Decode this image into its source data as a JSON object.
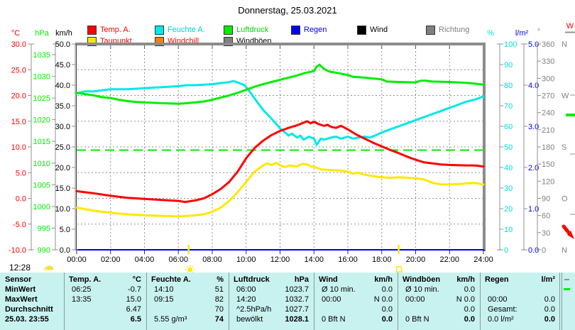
{
  "title": "Donnerstag, 25.03.2021",
  "footer": {
    "time": "12:28",
    "weather_icon": "cloud"
  },
  "colors": {
    "red": "#ff0000",
    "cyan": "#00dfdf",
    "green": "#00ee00",
    "blue": "#0000ff",
    "black": "#000000",
    "gray": "#808080",
    "yellow": "#ffe800",
    "orange": "#ff8000",
    "table_bg": "#c8f2f0",
    "grid": "#909090",
    "border": "#8c8c8c"
  },
  "legend": {
    "rows": [
      [
        {
          "label": "Temp. A.",
          "color": "#ff0000",
          "text_color": "#ff0000"
        },
        {
          "label": "Feuchte A.",
          "color": "#00e8e8",
          "text_color": "#00cfcf"
        },
        {
          "label": "Luftdruck",
          "color": "#00ee00",
          "text_color": "#00d400"
        },
        {
          "label": "Regen",
          "color": "#0000ff",
          "text_color": "#0000ff"
        },
        {
          "label": "Wind",
          "color": "#000000",
          "text_color": "#000000"
        },
        {
          "label": "Richtung",
          "color": "#808080",
          "text_color": "#808080"
        }
      ],
      [
        {
          "label": "Taupunkt",
          "color": "#ffe800",
          "text_color": "#ff0000"
        },
        {
          "label": "Windchill",
          "color": "#ff8000",
          "text_color": "#ff0000"
        },
        {
          "label": "Windböen",
          "color": "#808080",
          "text_color": "#000000"
        }
      ]
    ]
  },
  "axes": {
    "temp": {
      "unit": "°C",
      "ticks": [
        "30.0",
        "25.0",
        "20.0",
        "15.0",
        "10.0",
        "5.0",
        "0.0",
        "-5.0",
        "-10.0"
      ]
    },
    "pressure": {
      "unit": "hPa",
      "ticks": [
        "1035",
        "1030",
        "1025",
        "1020",
        "1015",
        "1010",
        "1005",
        "1000",
        "995",
        "990"
      ]
    },
    "wind": {
      "unit": "km/h",
      "ticks": [
        "50.0",
        "45.0",
        "40.0",
        "35.0",
        "30.0",
        "25.0",
        "20.0",
        "15.0",
        "10.0",
        "5.0",
        "0.0"
      ]
    },
    "humidity": {
      "unit": "%",
      "ticks": [
        "100",
        "90",
        "80",
        "70",
        "60",
        "50",
        "40",
        "30",
        "20",
        "10",
        "0"
      ]
    },
    "rain": {
      "unit": "l/m²",
      "ticks": [
        "5.0",
        "4.0",
        "3.0",
        "2.0",
        "1.0",
        "0.0"
      ]
    },
    "direction": {
      "unit": "°",
      "ticks": [
        {
          "v": "360",
          "l": "N"
        },
        {
          "v": "330",
          "l": ""
        },
        {
          "v": "300",
          "l": ""
        },
        {
          "v": "270",
          "l": "W"
        },
        {
          "v": "240",
          "l": ""
        },
        {
          "v": "210",
          "l": ""
        },
        {
          "v": "180",
          "l": "S"
        },
        {
          "v": "150",
          "l": ""
        },
        {
          "v": "120",
          "l": ""
        },
        {
          "v": "90",
          "l": "O"
        },
        {
          "v": "60",
          "l": ""
        },
        {
          "v": "30",
          "l": ""
        },
        {
          "v": "0",
          "l": "N"
        }
      ]
    },
    "radiation": {
      "unit": "W"
    }
  },
  "x_axis": {
    "labels": [
      "00:00",
      "02:00",
      "04:00",
      "06:00",
      "08:00",
      "10:00",
      "12:00",
      "14:00",
      "16:00",
      "18:00",
      "20:00",
      "22:00",
      "24:00"
    ]
  },
  "chart_data": {
    "type": "line",
    "x_unit": "hours",
    "x_range": [
      0,
      24
    ],
    "axis_ranges": {
      "temp": [
        -10,
        30
      ],
      "pressure": [
        990,
        1035
      ],
      "wind": [
        0,
        50
      ],
      "humidity": [
        0,
        100
      ],
      "rain": [
        0,
        5
      ],
      "direction": [
        0,
        360
      ]
    },
    "reference_line": {
      "axis": "pressure",
      "value": 1013,
      "color": "#00ee00",
      "style": "dashed"
    },
    "markers": {
      "sunrise_hour": 6.6,
      "sunset_hour": 19.0
    },
    "series": [
      {
        "name": "Regen",
        "axis": "rain",
        "color": "#0000ff",
        "width": 2,
        "points": [
          [
            0,
            0
          ],
          [
            24,
            0
          ]
        ]
      },
      {
        "name": "Feuchte A.",
        "axis": "humidity",
        "color": "#00e8e8",
        "width": 3,
        "points": [
          [
            0,
            76
          ],
          [
            0.5,
            77
          ],
          [
            1,
            77
          ],
          [
            2,
            78
          ],
          [
            3,
            78
          ],
          [
            4,
            78.5
          ],
          [
            5,
            79
          ],
          [
            6,
            79.5
          ],
          [
            6.5,
            80
          ],
          [
            7,
            80
          ],
          [
            8,
            80.5
          ],
          [
            8.5,
            81
          ],
          [
            9,
            81.5
          ],
          [
            9.25,
            82
          ],
          [
            9.6,
            81
          ],
          [
            9.9,
            80
          ],
          [
            10.2,
            77
          ],
          [
            10.5,
            73.5
          ],
          [
            11,
            68
          ],
          [
            11.4,
            64.5
          ],
          [
            11.8,
            61
          ],
          [
            12,
            59
          ],
          [
            12.3,
            57
          ],
          [
            12.5,
            55.5
          ],
          [
            12.7,
            56.5
          ],
          [
            13,
            54.5
          ],
          [
            13.2,
            55.5
          ],
          [
            13.4,
            53.5
          ],
          [
            13.7,
            55
          ],
          [
            14,
            54
          ],
          [
            14.17,
            51
          ],
          [
            14.4,
            54
          ],
          [
            14.6,
            53.5
          ],
          [
            14.8,
            54
          ],
          [
            15,
            54.5
          ],
          [
            15.3,
            55
          ],
          [
            15.6,
            54
          ],
          [
            16,
            55
          ],
          [
            16.3,
            54
          ],
          [
            16.6,
            54.5
          ],
          [
            17,
            55
          ],
          [
            17.3,
            54.5
          ],
          [
            17.6,
            55.5
          ],
          [
            18,
            57
          ],
          [
            18.5,
            58.5
          ],
          [
            19,
            60
          ],
          [
            19.5,
            61.5
          ],
          [
            20,
            63
          ],
          [
            20.5,
            64.5
          ],
          [
            21,
            66
          ],
          [
            21.5,
            67.5
          ],
          [
            22,
            69
          ],
          [
            22.5,
            70.5
          ],
          [
            23,
            72
          ],
          [
            23.5,
            73
          ],
          [
            24,
            74.5
          ]
        ]
      },
      {
        "name": "Luftdruck",
        "axis": "pressure",
        "color": "#00ee00",
        "width": 3,
        "points": [
          [
            0,
            1026.2
          ],
          [
            0.5,
            1025.9
          ],
          [
            1,
            1025.6
          ],
          [
            1.5,
            1025.2
          ],
          [
            2,
            1025.0
          ],
          [
            2.5,
            1024.6
          ],
          [
            3,
            1024.3
          ],
          [
            3.5,
            1024.1
          ],
          [
            4,
            1024.0
          ],
          [
            5,
            1023.8
          ],
          [
            6,
            1023.7
          ],
          [
            6.5,
            1023.8
          ],
          [
            7,
            1024.0
          ],
          [
            7.5,
            1024.2
          ],
          [
            8,
            1024.6
          ],
          [
            8.5,
            1025.1
          ],
          [
            9,
            1025.6
          ],
          [
            9.5,
            1026.2
          ],
          [
            10,
            1026.9
          ],
          [
            10.5,
            1027.6
          ],
          [
            11,
            1028.2
          ],
          [
            11.5,
            1028.7
          ],
          [
            12,
            1029.2
          ],
          [
            12.5,
            1029.7
          ],
          [
            13,
            1030.2
          ],
          [
            13.5,
            1030.8
          ],
          [
            14,
            1031.2
          ],
          [
            14.15,
            1032.2
          ],
          [
            14.33,
            1032.7
          ],
          [
            14.6,
            1031.7
          ],
          [
            14.9,
            1031.1
          ],
          [
            15.5,
            1030.7
          ],
          [
            16,
            1030.3
          ],
          [
            16.3,
            1029.9
          ],
          [
            17,
            1029.7
          ],
          [
            17.5,
            1029.5
          ],
          [
            18,
            1029.3
          ],
          [
            18.3,
            1028.8
          ],
          [
            19,
            1028.7
          ],
          [
            20,
            1028.6
          ],
          [
            20.3,
            1029.0
          ],
          [
            20.6,
            1029.0
          ],
          [
            21,
            1028.8
          ],
          [
            22,
            1028.7
          ],
          [
            23,
            1028.5
          ],
          [
            23.5,
            1028.3
          ],
          [
            24,
            1028.1
          ]
        ]
      },
      {
        "name": "Taupunkt",
        "axis": "temp",
        "color": "#ffe800",
        "width": 3,
        "points": [
          [
            0,
            -1.8
          ],
          [
            1,
            -2.4
          ],
          [
            2,
            -2.8
          ],
          [
            3,
            -3.1
          ],
          [
            4,
            -3.3
          ],
          [
            5,
            -3.4
          ],
          [
            6,
            -3.5
          ],
          [
            7,
            -3.3
          ],
          [
            7.5,
            -3.1
          ],
          [
            8,
            -2.6
          ],
          [
            8.5,
            -1.8
          ],
          [
            9,
            -0.5
          ],
          [
            9.5,
            1.2
          ],
          [
            10,
            3.2
          ],
          [
            10.5,
            5.2
          ],
          [
            11,
            6.4
          ],
          [
            11.2,
            6.8
          ],
          [
            11.5,
            6.5
          ],
          [
            11.8,
            6.9
          ],
          [
            12,
            6.4
          ],
          [
            12.3,
            6.1
          ],
          [
            12.6,
            6.4
          ],
          [
            13,
            6.2
          ],
          [
            13.3,
            6.7
          ],
          [
            13.6,
            6.6
          ],
          [
            13.8,
            6.2
          ],
          [
            14,
            6.2
          ],
          [
            14.2,
            5.9
          ],
          [
            14.5,
            5.6
          ],
          [
            15,
            5.5
          ],
          [
            15.5,
            5.4
          ],
          [
            16,
            5.2
          ],
          [
            16.3,
            4.8
          ],
          [
            16.6,
            5.0
          ],
          [
            17,
            4.6
          ],
          [
            17.5,
            4.3
          ],
          [
            18,
            4.1
          ],
          [
            18.5,
            4.0
          ],
          [
            19,
            4.1
          ],
          [
            19.5,
            4.0
          ],
          [
            20,
            3.9
          ],
          [
            20.5,
            3.7
          ],
          [
            21,
            3.0
          ],
          [
            21.5,
            2.7
          ],
          [
            22,
            2.7
          ],
          [
            22.5,
            2.8
          ],
          [
            23,
            2.9
          ],
          [
            23.5,
            3.0
          ],
          [
            24,
            2.7
          ]
        ]
      },
      {
        "name": "Temp. A.",
        "axis": "temp",
        "color": "#ff0000",
        "width": 3,
        "points": [
          [
            0,
            1.4
          ],
          [
            1,
            1.0
          ],
          [
            2,
            0.5
          ],
          [
            3,
            0.1
          ],
          [
            4,
            -0.1
          ],
          [
            5,
            -0.3
          ],
          [
            6,
            -0.5
          ],
          [
            6.4,
            -0.7
          ],
          [
            7,
            -0.4
          ],
          [
            7.5,
            0
          ],
          [
            8,
            0.8
          ],
          [
            8.5,
            1.8
          ],
          [
            9,
            3.2
          ],
          [
            9.5,
            5.2
          ],
          [
            10,
            7.8
          ],
          [
            10.5,
            9.8
          ],
          [
            11,
            11.2
          ],
          [
            11.5,
            12.3
          ],
          [
            12,
            13.1
          ],
          [
            12.5,
            13.7
          ],
          [
            13,
            14.2
          ],
          [
            13.6,
            15.0
          ],
          [
            13.8,
            14.6
          ],
          [
            14,
            14.9
          ],
          [
            14.3,
            14.4
          ],
          [
            14.6,
            14.1
          ],
          [
            14.8,
            14.3
          ],
          [
            15,
            13.9
          ],
          [
            15.3,
            13.7
          ],
          [
            15.6,
            14.1
          ],
          [
            16,
            13.4
          ],
          [
            16.5,
            12.4
          ],
          [
            17,
            11.6
          ],
          [
            17.5,
            10.8
          ],
          [
            18,
            10.1
          ],
          [
            18.5,
            9.4
          ],
          [
            19,
            8.8
          ],
          [
            19.5,
            8.1
          ],
          [
            20,
            7.5
          ],
          [
            20.5,
            7.0
          ],
          [
            21,
            6.8
          ],
          [
            21.5,
            6.6
          ],
          [
            22,
            6.5
          ],
          [
            23,
            6.4
          ],
          [
            23.5,
            6.4
          ],
          [
            24,
            6.2
          ]
        ]
      }
    ]
  },
  "table": {
    "row_labels": [
      "Sensor",
      "MinWert",
      "MaxWert",
      "Durchschnitt",
      "25.03. 23:55"
    ],
    "columns": [
      {
        "name": "Temp. A.",
        "unit": "°C",
        "rows": [
          [
            "06:25",
            "-0.7"
          ],
          [
            "13:35",
            "15.0"
          ],
          [
            "",
            "6.47"
          ],
          [
            "",
            "6.5"
          ]
        ]
      },
      {
        "name": "Feuchte A.",
        "unit": "%",
        "rows": [
          [
            "14:10",
            "51"
          ],
          [
            "09:15",
            "82"
          ],
          [
            "",
            "70"
          ],
          [
            "5.55 g/m³",
            "74"
          ]
        ]
      },
      {
        "name": "Luftdruck",
        "unit": "hPa",
        "rows": [
          [
            "06:00",
            "1023.7"
          ],
          [
            "14:20",
            "1032.7"
          ],
          [
            "^2.5hPa/h",
            "1027.7"
          ],
          [
            "bewölkt",
            "1028.1"
          ]
        ]
      },
      {
        "name": "Wind",
        "unit": "km/h",
        "rows": [
          [
            "Ø 10 min.",
            "0.0"
          ],
          [
            "00:00",
            "N 0.0"
          ],
          [
            "",
            "0.0"
          ],
          [
            "0 Bft N",
            "0.0"
          ]
        ]
      },
      {
        "name": "Windböen",
        "unit": "km/h",
        "rows": [
          [
            "Ø 10 min.",
            "0.0"
          ],
          [
            "00:00",
            "N 0.0"
          ],
          [
            "",
            "0.0"
          ],
          [
            "0 Bft N",
            "0.0"
          ]
        ]
      },
      {
        "name": "Regen",
        "unit": "l/m²",
        "rows": [
          [
            "",
            ""
          ],
          [
            "00:00",
            "0.0"
          ],
          [
            "Gesamt:",
            "0.0"
          ],
          [
            "0.0 l/m²",
            "0.0"
          ]
        ]
      }
    ]
  }
}
